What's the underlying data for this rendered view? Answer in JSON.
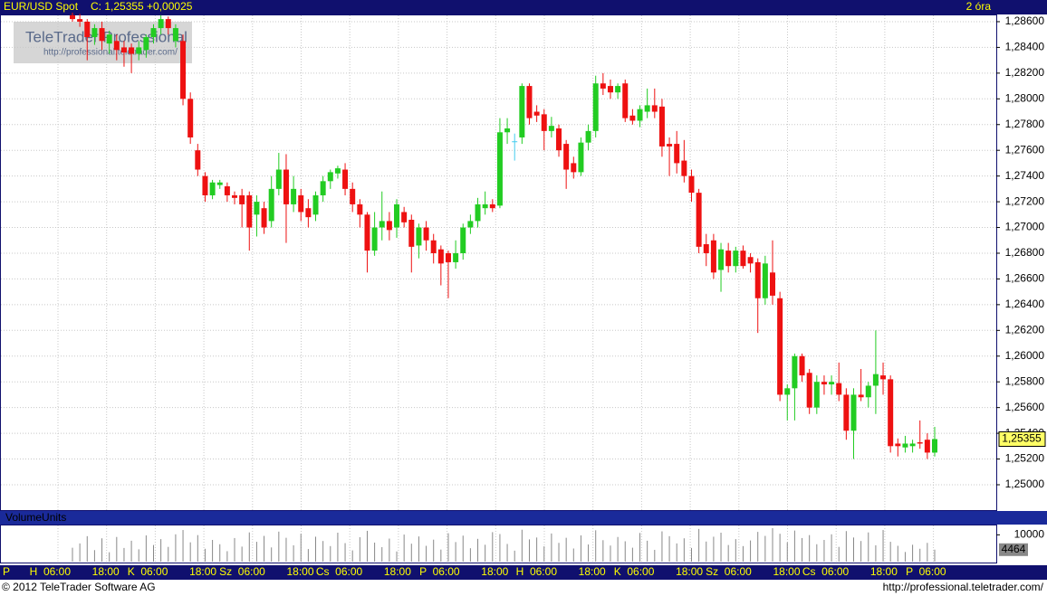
{
  "header": {
    "symbol": "EUR/USD Spot",
    "quote": "C: 1,25355 +0,00025",
    "interval": "2 óra"
  },
  "watermark": {
    "title": "TeleTrader Professional",
    "url": "http://professional.teletrader.com/"
  },
  "footer": {
    "copyright": "© 2012 TeleTrader Software AG",
    "url": "http://professional.teletrader.com/"
  },
  "chart_data": {
    "type": "candlestick",
    "up_color": "#22cc22",
    "down_color": "#ee1111",
    "doji_color": "#44ccee",
    "grid": true,
    "last_label": "1,25355",
    "ylim": [
      1.24796,
      1.28656
    ],
    "yticks": [
      {
        "value": 1.25,
        "label": "1,25000"
      },
      {
        "value": 1.252,
        "label": "1,25200"
      },
      {
        "value": 1.254,
        "label": "1,25400"
      },
      {
        "value": 1.256,
        "label": "1,25600"
      },
      {
        "value": 1.258,
        "label": "1,25800"
      },
      {
        "value": 1.26,
        "label": "1,26000"
      },
      {
        "value": 1.262,
        "label": "1,26200"
      },
      {
        "value": 1.264,
        "label": "1,26400"
      },
      {
        "value": 1.266,
        "label": "1,26600"
      },
      {
        "value": 1.268,
        "label": "1,26800"
      },
      {
        "value": 1.27,
        "label": "1,27000"
      },
      {
        "value": 1.272,
        "label": "1,27200"
      },
      {
        "value": 1.274,
        "label": "1,27400"
      },
      {
        "value": 1.276,
        "label": "1,27600"
      },
      {
        "value": 1.278,
        "label": "1,27800"
      },
      {
        "value": 1.28,
        "label": "1,28000"
      },
      {
        "value": 1.282,
        "label": "1,28200"
      },
      {
        "value": 1.284,
        "label": "1,28400"
      },
      {
        "value": 1.286,
        "label": "1,28600"
      }
    ],
    "x_labels": [
      "P",
      "H  06:00",
      "18:00",
      "K  06:00",
      "18:00",
      "Sz  06:00",
      "18:00",
      "Cs  06:00",
      "18:00",
      "P  06:00",
      "18:00",
      "H  06:00",
      "18:00",
      "K  06:00",
      "18:00",
      "Sz  06:00",
      "18:00",
      "Cs  06:00",
      "18:00",
      "P  06:00"
    ],
    "ohlc": [
      [
        1.2865,
        1.2867,
        1.286,
        1.2862
      ],
      [
        1.2862,
        1.2866,
        1.2856,
        1.286
      ],
      [
        1.286,
        1.2862,
        1.283,
        1.2848
      ],
      [
        1.2848,
        1.2858,
        1.2842,
        1.2855
      ],
      [
        1.2855,
        1.286,
        1.2838,
        1.2845
      ],
      [
        1.2843,
        1.2853,
        1.2835,
        1.285
      ],
      [
        1.2845,
        1.285,
        1.283,
        1.2838
      ],
      [
        1.284,
        1.2845,
        1.2825,
        1.2836
      ],
      [
        1.284,
        1.2843,
        1.282,
        1.2835
      ],
      [
        1.2835,
        1.2845,
        1.283,
        1.284
      ],
      [
        1.2838,
        1.285,
        1.2832,
        1.2848
      ],
      [
        1.2848,
        1.2858,
        1.2843,
        1.2855
      ],
      [
        1.2855,
        1.2865,
        1.285,
        1.2862
      ],
      [
        1.2862,
        1.2864,
        1.285,
        1.2855
      ],
      [
        1.2845,
        1.2858,
        1.284,
        1.2855
      ],
      [
        1.2845,
        1.285,
        1.2795,
        1.28
      ],
      [
        1.28,
        1.2805,
        1.2765,
        1.277
      ],
      [
        1.276,
        1.2765,
        1.274,
        1.2745
      ],
      [
        1.274,
        1.2743,
        1.272,
        1.2725
      ],
      [
        1.2725,
        1.2737,
        1.2722,
        1.2735
      ],
      [
        1.2733,
        1.2737,
        1.273,
        1.2735
      ],
      [
        1.2732,
        1.2735,
        1.272,
        1.2725
      ],
      [
        1.2725,
        1.2728,
        1.2718,
        1.2723
      ],
      [
        1.2725,
        1.273,
        1.27,
        1.2718
      ],
      [
        1.2725,
        1.2728,
        1.2682,
        1.27
      ],
      [
        1.271,
        1.2725,
        1.2693,
        1.272
      ],
      [
        1.2715,
        1.272,
        1.2695,
        1.27
      ],
      [
        1.2705,
        1.274,
        1.27,
        1.273
      ],
      [
        1.273,
        1.2758,
        1.2725,
        1.2745
      ],
      [
        1.2745,
        1.2757,
        1.2688,
        1.2718
      ],
      [
        1.2718,
        1.274,
        1.2712,
        1.273
      ],
      [
        1.2725,
        1.273,
        1.2705,
        1.2712
      ],
      [
        1.2715,
        1.2722,
        1.27,
        1.2708
      ],
      [
        1.271,
        1.2728,
        1.2705,
        1.2725
      ],
      [
        1.2725,
        1.274,
        1.272,
        1.2736
      ],
      [
        1.2736,
        1.2745,
        1.273,
        1.2743
      ],
      [
        1.2742,
        1.2748,
        1.2738,
        1.2746
      ],
      [
        1.2745,
        1.275,
        1.2725,
        1.273
      ],
      [
        1.273,
        1.2735,
        1.2712,
        1.2718
      ],
      [
        1.2718,
        1.2722,
        1.27,
        1.271
      ],
      [
        1.271,
        1.2712,
        1.2665,
        1.2682
      ],
      [
        1.2682,
        1.2712,
        1.2678,
        1.27
      ],
      [
        1.27,
        1.2728,
        1.269,
        1.2705
      ],
      [
        1.2705,
        1.2712,
        1.269,
        1.2698
      ],
      [
        1.27,
        1.2722,
        1.2692,
        1.2718
      ],
      [
        1.2712,
        1.2716,
        1.27,
        1.2704
      ],
      [
        1.2706,
        1.271,
        1.2665,
        1.2685
      ],
      [
        1.2686,
        1.2703,
        1.2676,
        1.27
      ],
      [
        1.27,
        1.2705,
        1.2682,
        1.269
      ],
      [
        1.269,
        1.2695,
        1.2672,
        1.268
      ],
      [
        1.2683,
        1.2686,
        1.2655,
        1.2672
      ],
      [
        1.268,
        1.2682,
        1.2645,
        1.2673
      ],
      [
        1.2673,
        1.269,
        1.2668,
        1.268
      ],
      [
        1.268,
        1.2703,
        1.2675,
        1.27
      ],
      [
        1.27,
        1.271,
        1.2695,
        1.2705
      ],
      [
        1.2705,
        1.2723,
        1.27,
        1.2718
      ],
      [
        1.2715,
        1.2728,
        1.271,
        1.2718
      ],
      [
        1.2718,
        1.2722,
        1.2712,
        1.2715
      ],
      [
        1.2717,
        1.2785,
        1.2715,
        1.2774
      ],
      [
        1.2774,
        1.2785,
        1.2765,
        1.2777
      ],
      [
        1.2767,
        1.2773,
        1.2752,
        1.2767
      ],
      [
        1.277,
        1.2812,
        1.2765,
        1.281
      ],
      [
        1.281,
        1.2812,
        1.278,
        1.2785
      ],
      [
        1.279,
        1.2795,
        1.2782,
        1.2787
      ],
      [
        1.2788,
        1.2792,
        1.276,
        1.2775
      ],
      [
        1.2775,
        1.2786,
        1.277,
        1.2779
      ],
      [
        1.2777,
        1.278,
        1.2755,
        1.276
      ],
      [
        1.2765,
        1.2768,
        1.273,
        1.2745
      ],
      [
        1.275,
        1.2755,
        1.2738,
        1.2743
      ],
      [
        1.2743,
        1.277,
        1.274,
        1.2766
      ],
      [
        1.2766,
        1.278,
        1.276,
        1.2775
      ],
      [
        1.2775,
        1.2818,
        1.277,
        1.2812
      ],
      [
        1.2812,
        1.282,
        1.2803,
        1.2808
      ],
      [
        1.281,
        1.2815,
        1.28,
        1.2805
      ],
      [
        1.2805,
        1.2812,
        1.28,
        1.281
      ],
      [
        1.2812,
        1.2815,
        1.2782,
        1.2785
      ],
      [
        1.2787,
        1.2792,
        1.278,
        1.2783
      ],
      [
        1.2783,
        1.2795,
        1.2778,
        1.2792
      ],
      [
        1.279,
        1.2808,
        1.2785,
        1.2795
      ],
      [
        1.2795,
        1.2808,
        1.2785,
        1.279
      ],
      [
        1.2794,
        1.28,
        1.2755,
        1.2763
      ],
      [
        1.2765,
        1.277,
        1.274,
        1.2763
      ],
      [
        1.2765,
        1.2775,
        1.2742,
        1.275
      ],
      [
        1.2752,
        1.2768,
        1.2735,
        1.274
      ],
      [
        1.274,
        1.2745,
        1.272,
        1.2727
      ],
      [
        1.2727,
        1.273,
        1.268,
        1.2685
      ],
      [
        1.2687,
        1.2695,
        1.267,
        1.268
      ],
      [
        1.269,
        1.2695,
        1.266,
        1.2665
      ],
      [
        1.2667,
        1.2688,
        1.265,
        1.2683
      ],
      [
        1.2682,
        1.2688,
        1.2665,
        1.267
      ],
      [
        1.267,
        1.2685,
        1.2665,
        1.2682
      ],
      [
        1.2682,
        1.2686,
        1.2668,
        1.267
      ],
      [
        1.2677,
        1.268,
        1.2665,
        1.2672
      ],
      [
        1.2673,
        1.2676,
        1.2618,
        1.2645
      ],
      [
        1.2645,
        1.2678,
        1.264,
        1.2672
      ],
      [
        1.2665,
        1.269,
        1.264,
        1.2647
      ],
      [
        1.2645,
        1.265,
        1.2565,
        1.257
      ],
      [
        1.257,
        1.2578,
        1.255,
        1.2575
      ],
      [
        1.2575,
        1.2602,
        1.255,
        1.26
      ],
      [
        1.26,
        1.2602,
        1.258,
        1.2585
      ],
      [
        1.2587,
        1.259,
        1.2555,
        1.256
      ],
      [
        1.256,
        1.2585,
        1.2555,
        1.258
      ],
      [
        1.258,
        1.2585,
        1.257,
        1.2578
      ],
      [
        1.2578,
        1.2585,
        1.257,
        1.258
      ],
      [
        1.2579,
        1.2595,
        1.2565,
        1.257
      ],
      [
        1.257,
        1.2575,
        1.2535,
        1.2542
      ],
      [
        1.2542,
        1.2575,
        1.252,
        1.257
      ],
      [
        1.257,
        1.259,
        1.2565,
        1.2568
      ],
      [
        1.2568,
        1.258,
        1.256,
        1.2577
      ],
      [
        1.2577,
        1.262,
        1.2555,
        1.2586
      ],
      [
        1.2585,
        1.2595,
        1.257,
        1.2582
      ],
      [
        1.2582,
        1.2585,
        1.2525,
        1.253
      ],
      [
        1.2532,
        1.2536,
        1.2522,
        1.253
      ],
      [
        1.2529,
        1.2538,
        1.2525,
        1.2532
      ],
      [
        1.253,
        1.2535,
        1.2525,
        1.2532
      ],
      [
        1.2533,
        1.255,
        1.2528,
        1.2532
      ],
      [
        1.2535,
        1.254,
        1.252,
        1.2525
      ],
      [
        1.2525,
        1.2545,
        1.2522,
        1.25355
      ]
    ],
    "volume": {
      "title": "VolumeUnits",
      "color": "#888888",
      "ylim": [
        0,
        13500
      ],
      "yticks": [
        10000
      ],
      "values": [
        5200,
        6800,
        9500,
        4300,
        8700,
        3500,
        9200,
        5100,
        7800,
        4600,
        9800,
        6200,
        8400,
        5500,
        10200,
        11800,
        7200,
        9900,
        4800,
        8100,
        6500,
        3900,
        8800,
        5600,
        10900,
        7400,
        9600,
        5300,
        11200,
        8900,
        6100,
        10400,
        4700,
        9300,
        7700,
        5800,
        10800,
        6900,
        4200,
        9100,
        11500,
        7100,
        5400,
        8600,
        3800,
        10100,
        6700,
        9400,
        5900,
        8200,
        4500,
        10600,
        7300,
        9700,
        5000,
        8500,
        6300,
        11000,
        10300,
        6600,
        4100,
        11900,
        8300,
        9000,
        5700,
        10500,
        7000,
        8900,
        4900,
        9800,
        6400,
        11700,
        8000,
        6000,
        9200,
        7600,
        5200,
        10700,
        7800,
        4400,
        11300,
        9500,
        6800,
        8700,
        5100,
        12200,
        7500,
        9300,
        10800,
        6200,
        8400,
        5800,
        7900,
        11100,
        9600,
        12500,
        10400,
        7200,
        11600,
        8800,
        9900,
        6500,
        8100,
        10200,
        5500,
        11400,
        9000,
        7700,
        10900,
        6100,
        11800,
        7400,
        5900,
        3600,
        6300,
        4800,
        7000,
        4464
      ]
    }
  }
}
